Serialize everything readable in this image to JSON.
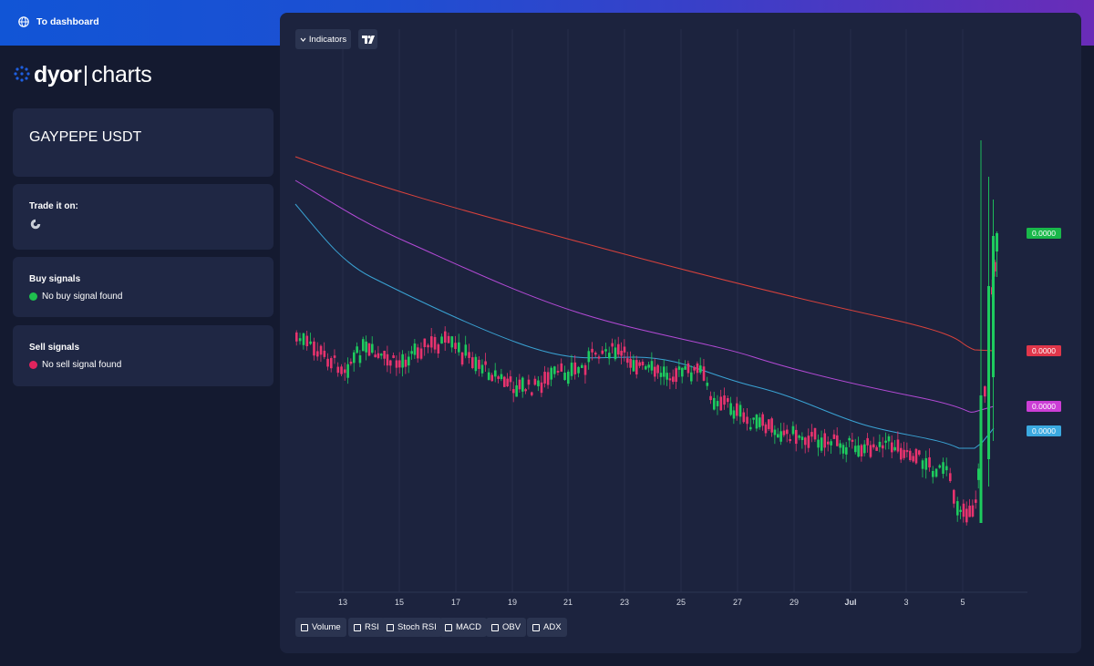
{
  "topbar": {
    "dashboard_label": "To dashboard"
  },
  "logo": {
    "word1": "dyor",
    "word2": "charts"
  },
  "pair": {
    "name": "GAYPEPE USDT"
  },
  "trade": {
    "title": "Trade it on:",
    "exchange_icon": "exchange-logo-icon"
  },
  "buy": {
    "title": "Buy signals",
    "status": "No buy signal found",
    "color": "#1fbf4e"
  },
  "sell": {
    "title": "Sell signals",
    "status": "No sell signal found",
    "color": "#e0245e"
  },
  "toolbar": {
    "indicators_label": "Indicators",
    "tv_icon": "tradingview-icon"
  },
  "indicator_toggles": [
    "Volume",
    "RSI",
    "Stoch RSI",
    "MACD",
    "OBV",
    "ADX"
  ],
  "chart_data": {
    "type": "candlestick",
    "x_ticks": [
      "13",
      "15",
      "17",
      "19",
      "21",
      "23",
      "25",
      "27",
      "29",
      "Jul",
      "3",
      "5"
    ],
    "price_labels": [
      {
        "value": "0.0000",
        "color": "#19b84a",
        "series": "last-price"
      },
      {
        "value": "0.0000",
        "color": "#e0364a",
        "series": "ma-red"
      },
      {
        "value": "0.0000",
        "color": "#cc3ed6",
        "series": "ma-magenta"
      },
      {
        "value": "0.0000",
        "color": "#3ba9e0",
        "series": "ma-cyan"
      }
    ],
    "colors": {
      "up": "#1ecb5e",
      "down": "#e8336e",
      "ma_red": "#d9423c",
      "ma_magenta": "#b44ad6",
      "ma_cyan": "#3aa3d4"
    }
  }
}
